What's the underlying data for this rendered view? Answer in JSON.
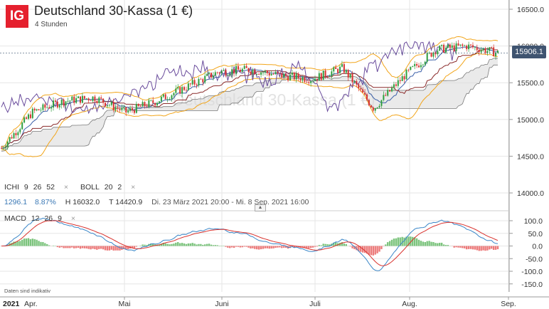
{
  "header": {
    "logo": "IG",
    "title": "Deutschland 30-Kassa (1 €)",
    "interval": "4 Stunden"
  },
  "watermark": "Deutschland 30-Kassa (1 €)",
  "price_tag": "15906.1",
  "legend": {
    "ichi_name": "ICHI",
    "ichi_p1": "9",
    "ichi_p2": "26",
    "ichi_p3": "52",
    "boll_name": "BOLL",
    "boll_p1": "20",
    "boll_p2": "2",
    "close_icon": "×",
    "change": "1296.1",
    "change_pct": "8.87%",
    "high": "H 16032.0",
    "low": "T 14420.9",
    "range": "Di. 23 März 2021 20:00 - Mi. 8 Sep. 2021 16:00",
    "macd_name": "MACD",
    "macd_p1": "12",
    "macd_p2": "26",
    "macd_p3": "9"
  },
  "disclaimer": "Daten sind indikativ",
  "colors": {
    "candle_up": "#2f9e3e",
    "candle_down": "#d9322e",
    "boll": "#f2a51a",
    "ichi_chikou": "#6a4c9c",
    "ichi_tenkan": "#3a5fa8",
    "ichi_kijun": "#8a2a2a",
    "cloud": "#9b9b9b",
    "macd_line": "#3a86c8",
    "signal_line": "#d9322e",
    "hist_pos": "#7cc47d",
    "hist_neg": "#ec7a7a",
    "price_tag_bg": "#3f5470"
  },
  "chart_data": [
    {
      "type": "candlestick",
      "title": "Deutschland 30-Kassa (1 €)",
      "interval": "4 Stunden",
      "x_ticks": [
        "Mai",
        "Juni",
        "Juli",
        "Aug.",
        "Sep."
      ],
      "x_first_labels": [
        "2021",
        "Apr."
      ],
      "y_ticks": [
        14000.0,
        14500.0,
        15000.0,
        15500.0,
        16000.0,
        16500.0
      ],
      "ylim": [
        13900,
        16600
      ],
      "high": 16032.0,
      "low": 14420.9,
      "last": 15906.1,
      "change": 1296.1,
      "change_pct": 8.87,
      "key_points": [
        {
          "date": "Apr.",
          "close": 14610
        },
        {
          "date": "Anf. Apr.",
          "close": 15100
        },
        {
          "date": "Mitte Apr.",
          "close": 15250
        },
        {
          "date": "Ende Apr.",
          "close": 15300
        },
        {
          "date": "Anf. Mai",
          "close": 15100
        },
        {
          "date": "Mitte Mai",
          "close": 15250
        },
        {
          "date": "Ende Mai",
          "close": 15450
        },
        {
          "date": "Anf. Juni",
          "close": 15650
        },
        {
          "date": "Mitte Juni",
          "close": 15680
        },
        {
          "date": "Ende Juni",
          "close": 15600
        },
        {
          "date": "Anf. Juli",
          "close": 15550
        },
        {
          "date": "Mitte Juli",
          "close": 15700
        },
        {
          "date": "Ende Juli",
          "close": 15150
        },
        {
          "date": "Anf. Aug.",
          "close": 15600
        },
        {
          "date": "Mitte Aug.",
          "close": 15950
        },
        {
          "date": "Ende Aug.",
          "close": 16000
        },
        {
          "date": "Anf. Sep.",
          "close": 15906.1
        }
      ],
      "indicators": [
        "ICHI 9 26 52",
        "BOLL 20 2"
      ]
    },
    {
      "type": "macd",
      "params": [
        12,
        26,
        9
      ],
      "y_ticks": [
        100.0,
        50.0,
        0.0,
        -50.0,
        -100.0,
        -150.0
      ],
      "ylim": [
        -165,
        115
      ],
      "min_value": -145
    }
  ]
}
